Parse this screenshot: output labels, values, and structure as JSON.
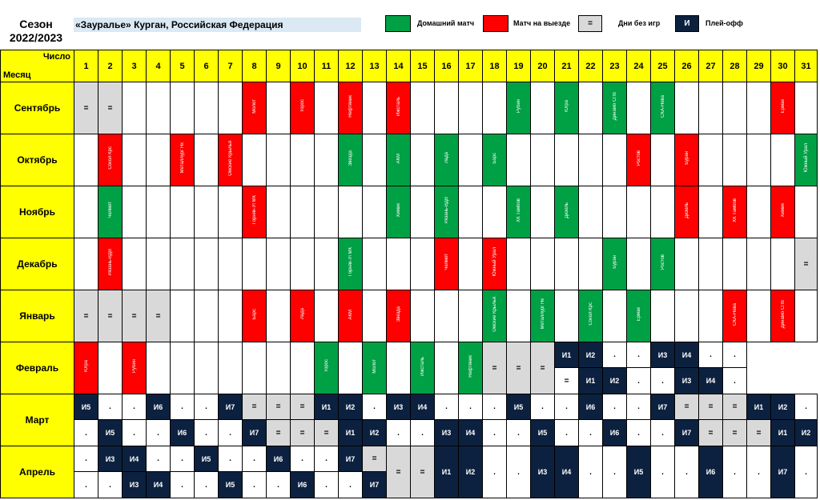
{
  "season": {
    "label": "Сезон",
    "years": "2022/2023"
  },
  "team": "«Зауралье» Курган, Российская Федерация",
  "legend": {
    "home": {
      "label": "Домашний матч",
      "color": "#00a045"
    },
    "away": {
      "label": "Матч на выезде",
      "color": "#ff0000"
    },
    "off": {
      "label": "Дни без игр",
      "symbol": "="
    },
    "playoff": {
      "label": "Плей-офф",
      "symbol": "И"
    }
  },
  "corner": {
    "number_label": "Число",
    "month_label": "Месяц"
  },
  "days": [
    "1",
    "2",
    "3",
    "4",
    "5",
    "6",
    "7",
    "8",
    "9",
    "10",
    "11",
    "12",
    "13",
    "14",
    "15",
    "16",
    "17",
    "18",
    "19",
    "20",
    "21",
    "22",
    "23",
    "24",
    "25",
    "26",
    "27",
    "28",
    "29",
    "30",
    "31"
  ],
  "months": [
    {
      "name": "Сентябрь",
      "cells": [
        [
          "o",
          "="
        ],
        [
          "o",
          "="
        ],
        [
          "e"
        ],
        [
          "e"
        ],
        [
          "e"
        ],
        [
          "e"
        ],
        [
          "e"
        ],
        [
          "a",
          "Молот"
        ],
        [
          "e"
        ],
        [
          "a",
          "Торос"
        ],
        [
          "e"
        ],
        [
          "a",
          "Нефтяник"
        ],
        [
          "e"
        ],
        [
          "a",
          "Ижсталь"
        ],
        [
          "e"
        ],
        [
          "e"
        ],
        [
          "e"
        ],
        [
          "e"
        ],
        [
          "h",
          "Рубин"
        ],
        [
          "e"
        ],
        [
          "h",
          "Югра"
        ],
        [
          "e"
        ],
        [
          "h",
          "Динамо СПб"
        ],
        [
          "e"
        ],
        [
          "h",
          "СКА-Нева"
        ],
        [
          "e"
        ],
        [
          "e"
        ],
        [
          "e"
        ],
        [
          "e"
        ],
        [
          "a",
          "Ермак"
        ],
        [
          "x"
        ]
      ]
    },
    {
      "name": "Октябрь",
      "cells": [
        [
          "e"
        ],
        [
          "a",
          "Сокол Крс"
        ],
        [
          "e"
        ],
        [
          "e"
        ],
        [
          "a",
          "Металлург Нк"
        ],
        [
          "e"
        ],
        [
          "a",
          "Омские Крылья"
        ],
        [
          "e"
        ],
        [
          "e"
        ],
        [
          "e"
        ],
        [
          "e"
        ],
        [
          "h",
          "Звезда"
        ],
        [
          "e"
        ],
        [
          "h",
          "АКМ"
        ],
        [
          "e"
        ],
        [
          "h",
          "Лада"
        ],
        [
          "e"
        ],
        [
          "h",
          "Барс"
        ],
        [
          "e"
        ],
        [
          "e"
        ],
        [
          "e"
        ],
        [
          "e"
        ],
        [
          "e"
        ],
        [
          "a",
          "Ростов"
        ],
        [
          "e"
        ],
        [
          "a",
          "Буран"
        ],
        [
          "e"
        ],
        [
          "e"
        ],
        [
          "e"
        ],
        [
          "e"
        ],
        [
          "h",
          "Южный Урал"
        ]
      ]
    },
    {
      "name": "Ноябрь",
      "cells": [
        [
          "e"
        ],
        [
          "h",
          "Челмет"
        ],
        [
          "e"
        ],
        [
          "e"
        ],
        [
          "e"
        ],
        [
          "e"
        ],
        [
          "e"
        ],
        [
          "a",
          "Горняк-УГМК"
        ],
        [
          "e"
        ],
        [
          "e"
        ],
        [
          "e"
        ],
        [
          "e"
        ],
        [
          "e"
        ],
        [
          "h",
          "Химик"
        ],
        [
          "e"
        ],
        [
          "h",
          "Рязань-ВДВ"
        ],
        [
          "e"
        ],
        [
          "e"
        ],
        [
          "h",
          "ХК Тамбов"
        ],
        [
          "e"
        ],
        [
          "h",
          "Дизель"
        ],
        [
          "e"
        ],
        [
          "e"
        ],
        [
          "e"
        ],
        [
          "e"
        ],
        [
          "a",
          "Дизель"
        ],
        [
          "e"
        ],
        [
          "a",
          "ХК Тамбов"
        ],
        [
          "e"
        ],
        [
          "a",
          "Химик"
        ],
        [
          "x"
        ]
      ]
    },
    {
      "name": "Декабрь",
      "cells": [
        [
          "e"
        ],
        [
          "a",
          "Рязань-ВДВ"
        ],
        [
          "e"
        ],
        [
          "e"
        ],
        [
          "e"
        ],
        [
          "e"
        ],
        [
          "e"
        ],
        [
          "e"
        ],
        [
          "e"
        ],
        [
          "e"
        ],
        [
          "e"
        ],
        [
          "h",
          "Горняк-УГМК"
        ],
        [
          "e"
        ],
        [
          "e"
        ],
        [
          "e"
        ],
        [
          "a",
          "Челмет"
        ],
        [
          "e"
        ],
        [
          "a",
          "Южный Урал"
        ],
        [
          "e"
        ],
        [
          "e"
        ],
        [
          "e"
        ],
        [
          "e"
        ],
        [
          "h",
          "Буран"
        ],
        [
          "e"
        ],
        [
          "h",
          "Ростов"
        ],
        [
          "e"
        ],
        [
          "e"
        ],
        [
          "e"
        ],
        [
          "e"
        ],
        [
          "e"
        ],
        [
          "o",
          "="
        ]
      ]
    },
    {
      "name": "Январь",
      "cells": [
        [
          "o",
          "="
        ],
        [
          "o",
          "="
        ],
        [
          "o",
          "="
        ],
        [
          "o",
          "="
        ],
        [
          "e"
        ],
        [
          "e"
        ],
        [
          "e"
        ],
        [
          "a",
          "Барс"
        ],
        [
          "e"
        ],
        [
          "a",
          "Лада"
        ],
        [
          "e"
        ],
        [
          "a",
          "АКМ"
        ],
        [
          "e"
        ],
        [
          "a",
          "Звезда"
        ],
        [
          "e"
        ],
        [
          "e"
        ],
        [
          "e"
        ],
        [
          "h",
          "Омские Крылья"
        ],
        [
          "e"
        ],
        [
          "h",
          "Металлург Нк"
        ],
        [
          "e"
        ],
        [
          "h",
          "Сокол Крс"
        ],
        [
          "e"
        ],
        [
          "h",
          "Ермак"
        ],
        [
          "e"
        ],
        [
          "e"
        ],
        [
          "e"
        ],
        [
          "a",
          "СКА-Нева"
        ],
        [
          "e"
        ],
        [
          "a",
          "Динамо СПб"
        ],
        [
          "e"
        ]
      ]
    },
    {
      "name": "Февраль",
      "cells": [
        [
          "a",
          "Югра"
        ],
        [
          "e"
        ],
        [
          "a",
          "Рубин"
        ],
        [
          "e"
        ],
        [
          "e"
        ],
        [
          "e"
        ],
        [
          "e"
        ],
        [
          "e"
        ],
        [
          "e"
        ],
        [
          "e"
        ],
        [
          "h",
          "Торос"
        ],
        [
          "e"
        ],
        [
          "h",
          "Молот"
        ],
        [
          "e"
        ],
        [
          "h",
          "Ижсталь"
        ],
        [
          "e"
        ],
        [
          "h",
          "Нефтяник"
        ],
        [
          "o",
          "="
        ],
        [
          "o",
          "="
        ],
        [
          "o",
          "="
        ]
      ],
      "top": [
        [
          "p",
          "И1"
        ],
        [
          "p",
          "И2"
        ],
        [
          "d",
          "."
        ],
        [
          "d",
          "."
        ],
        [
          "p",
          "И3"
        ],
        [
          "p",
          "И4"
        ],
        [
          "d",
          "."
        ],
        [
          "d",
          "."
        ]
      ],
      "bottom": [
        [
          "d",
          "="
        ],
        [
          "p",
          "И1"
        ],
        [
          "p",
          "И2"
        ],
        [
          "d",
          "."
        ],
        [
          "d",
          "."
        ],
        [
          "p",
          "И3"
        ],
        [
          "p",
          "И4"
        ],
        [
          "d",
          "."
        ]
      ]
    },
    {
      "name": "Март",
      "top": [
        [
          "p",
          "И5"
        ],
        [
          "d",
          "."
        ],
        [
          "d",
          "."
        ],
        [
          "p",
          "И6"
        ],
        [
          "d",
          "."
        ],
        [
          "d",
          "."
        ],
        [
          "p",
          "И7"
        ],
        [
          "o",
          "="
        ],
        [
          "o",
          "="
        ],
        [
          "o",
          "="
        ],
        [
          "p",
          "И1"
        ],
        [
          "p",
          "И2"
        ],
        [
          "d",
          "."
        ],
        [
          "p",
          "И3"
        ],
        [
          "p",
          "И4"
        ],
        [
          "d",
          "."
        ],
        [
          "d",
          "."
        ],
        [
          "d",
          "."
        ],
        [
          "p",
          "И5"
        ],
        [
          "d",
          "."
        ],
        [
          "d",
          "."
        ],
        [
          "p",
          "И6"
        ],
        [
          "d",
          "."
        ],
        [
          "d",
          "."
        ],
        [
          "p",
          "И7"
        ],
        [
          "o",
          "="
        ],
        [
          "o",
          "="
        ],
        [
          "o",
          "="
        ],
        [
          "p",
          "И1"
        ],
        [
          "p",
          "И2"
        ],
        [
          "d",
          "."
        ]
      ],
      "bottom": [
        [
          "d",
          "."
        ],
        [
          "p",
          "И5"
        ],
        [
          "d",
          "."
        ],
        [
          "d",
          "."
        ],
        [
          "p",
          "И6"
        ],
        [
          "d",
          "."
        ],
        [
          "d",
          "."
        ],
        [
          "p",
          "И7"
        ],
        [
          "o",
          "="
        ],
        [
          "o",
          "="
        ],
        [
          "o",
          "="
        ],
        [
          "p",
          "И1"
        ],
        [
          "p",
          "И2"
        ],
        [
          "d",
          "."
        ],
        [
          "d",
          "."
        ],
        [
          "p",
          "И3"
        ],
        [
          "p",
          "И4"
        ],
        [
          "d",
          "."
        ],
        [
          "d",
          "."
        ],
        [
          "p",
          "И5"
        ],
        [
          "d",
          "."
        ],
        [
          "d",
          "."
        ],
        [
          "p",
          "И6"
        ],
        [
          "d",
          "."
        ],
        [
          "d",
          "."
        ],
        [
          "p",
          "И7"
        ],
        [
          "o",
          "="
        ],
        [
          "o",
          "="
        ],
        [
          "o",
          "="
        ],
        [
          "p",
          "И1"
        ],
        [
          "p",
          "И2"
        ]
      ]
    },
    {
      "name": "Апрель",
      "top": [
        [
          "d",
          "."
        ],
        [
          "p",
          "И3"
        ],
        [
          "p",
          "И4"
        ],
        [
          "d",
          "."
        ],
        [
          "d",
          "."
        ],
        [
          "p",
          "И5"
        ],
        [
          "d",
          "."
        ],
        [
          "d",
          "."
        ],
        [
          "p",
          "И6"
        ],
        [
          "d",
          "."
        ],
        [
          "d",
          "."
        ],
        [
          "p",
          "И7"
        ],
        [
          "o",
          "="
        ]
      ],
      "bottom": [
        [
          "d",
          "."
        ],
        [
          "d",
          "."
        ],
        [
          "p",
          "И3"
        ],
        [
          "p",
          "И4"
        ],
        [
          "d",
          "."
        ],
        [
          "d",
          "."
        ],
        [
          "p",
          "И5"
        ],
        [
          "d",
          "."
        ],
        [
          "d",
          "."
        ],
        [
          "p",
          "И6"
        ],
        [
          "d",
          "."
        ],
        [
          "d",
          "."
        ],
        [
          "p",
          "И7"
        ]
      ],
      "merged": [
        [
          "o",
          "="
        ],
        [
          "o",
          "="
        ],
        [
          "p",
          "И1"
        ],
        [
          "p",
          "И2"
        ],
        [
          "d",
          "."
        ],
        [
          "d",
          "."
        ],
        [
          "p",
          "И3"
        ],
        [
          "p",
          "И4"
        ],
        [
          "d",
          "."
        ],
        [
          "d",
          "."
        ],
        [
          "p",
          "И5"
        ],
        [
          "d",
          "."
        ],
        [
          "d",
          "."
        ],
        [
          "p",
          "И6"
        ],
        [
          "d",
          "."
        ],
        [
          "d",
          "."
        ],
        [
          "p",
          "И7"
        ],
        [
          "d",
          "."
        ]
      ]
    }
  ]
}
